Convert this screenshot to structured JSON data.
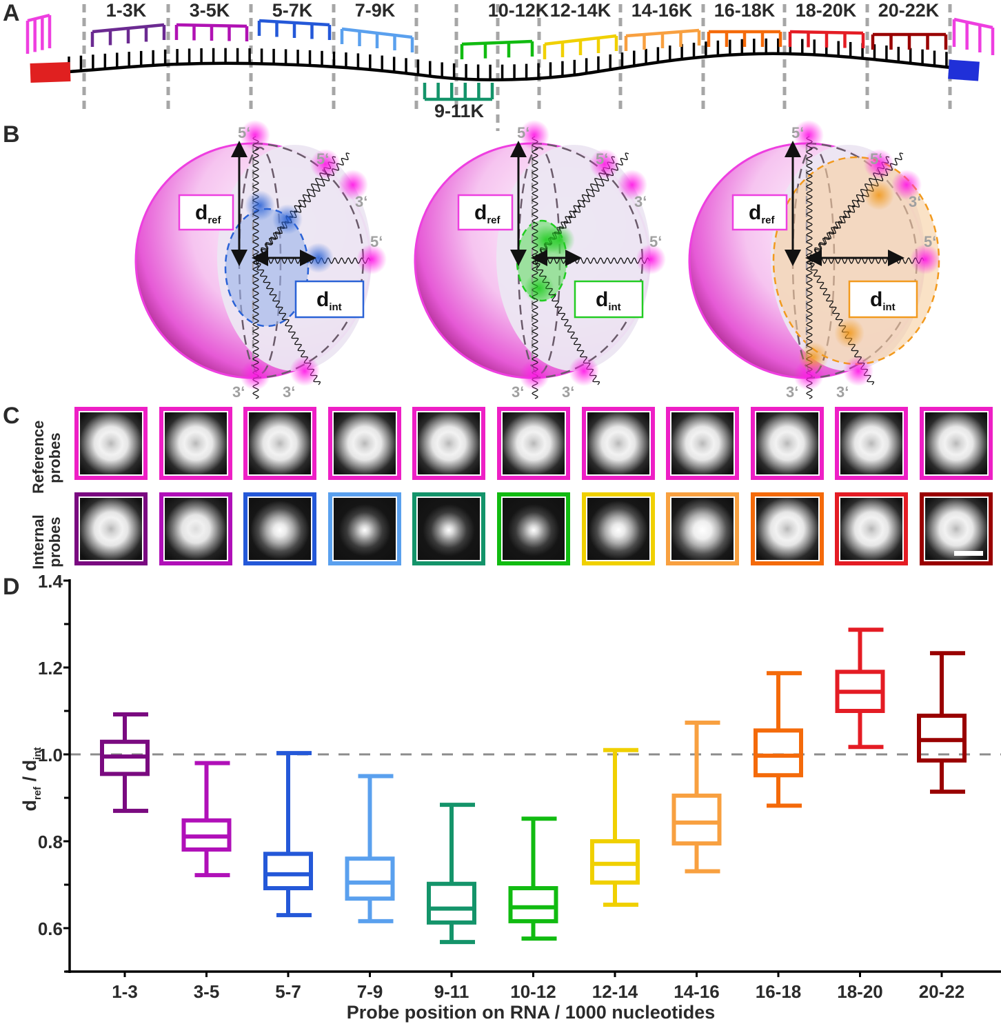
{
  "panels": {
    "a": {
      "letter": "A",
      "segments": [
        {
          "label": "1-3K",
          "color": "#6b2a91",
          "position": "above"
        },
        {
          "label": "3-5K",
          "color": "#b012b3",
          "position": "above"
        },
        {
          "label": "5-7K",
          "color": "#2458d8",
          "position": "above"
        },
        {
          "label": "7-9K",
          "color": "#5aa0ee",
          "position": "above"
        },
        {
          "label": "9-11K",
          "color": "#14946a",
          "position": "below"
        },
        {
          "label": "10-12K",
          "color": "#11bb11",
          "position": "above"
        },
        {
          "label": "12-14K",
          "color": "#f0d000",
          "position": "above"
        },
        {
          "label": "14-16K",
          "color": "#f8a040",
          "position": "above"
        },
        {
          "label": "16-18K",
          "color": "#f46a0a",
          "position": "above"
        },
        {
          "label": "18-20K",
          "color": "#e41c24",
          "position": "above"
        },
        {
          "label": "20-22K",
          "color": "#990000",
          "position": "above"
        }
      ],
      "reference_probe_color": "#ee3fe0",
      "end_5prime_color": "#e02020",
      "end_3prime_color": "#2030d8"
    },
    "b": {
      "letter": "B",
      "models": [
        {
          "internal_color": "#2a62d6",
          "fill": "#9ab2ea",
          "d_ref": "d",
          "d_ref_sub": "ref",
          "d_int": "d",
          "d_int_sub": "int",
          "box_color": "#2a62d6"
        },
        {
          "internal_color": "#22cc22",
          "fill": "#66dd66",
          "d_ref": "d",
          "d_ref_sub": "ref",
          "d_int": "d",
          "d_int_sub": "int",
          "box_color": "#22cc22"
        },
        {
          "internal_color": "#f29a1e",
          "fill": "#f7cfa0",
          "d_ref": "d",
          "d_ref_sub": "ref",
          "d_int": "d",
          "d_int_sub": "int",
          "box_color": "#f29a1e"
        }
      ],
      "end_labels": {
        "five_prime": "5‘",
        "three_prime": "3‘"
      },
      "sphere_color": "#ee3fe0"
    },
    "c": {
      "letter": "C",
      "reference_row_label": [
        "Reference",
        "probes"
      ],
      "internal_row_label": [
        "Internal",
        "probes"
      ],
      "reference_border": "#ee1fc5",
      "internal_borders": [
        "#7a0a80",
        "#b010b8",
        "#2458d8",
        "#5aa0ee",
        "#14946a",
        "#11bb11",
        "#f0d000",
        "#f8a040",
        "#f46a0a",
        "#e41c24",
        "#990000"
      ],
      "reference_profile": [
        "ring",
        "ring",
        "ring",
        "ring",
        "ring",
        "ring",
        "ring",
        "ring",
        "ring",
        "ring",
        "ring"
      ],
      "internal_profile": [
        "ring",
        "ring-small",
        "spot",
        "spot-small",
        "spot-small",
        "spot-small",
        "spot",
        "spot-large",
        "ring",
        "ring",
        "ring"
      ],
      "scale_bar": true
    },
    "d": {
      "letter": "D"
    }
  },
  "chart_data": {
    "type": "box",
    "title": "",
    "xlabel": "Probe position on RNA / 1000 nucleotides",
    "ylabel": "d_ref / d_int",
    "ylabel_parts": {
      "main1": "d",
      "sub1": "ref",
      "sep": " / ",
      "main2": "d",
      "sub2": "int"
    },
    "ylim": [
      0.5,
      1.4
    ],
    "yticks_major": [
      0.6,
      0.8,
      1.0,
      1.2,
      1.4
    ],
    "yticks_labels": [
      "0.6",
      "0.8",
      "1.0",
      "1.2",
      "1.4"
    ],
    "yticks_minor": [
      0.5,
      0.7,
      0.9,
      1.1,
      1.3
    ],
    "reference_line": 1.0,
    "grid": false,
    "categories": [
      "1-3",
      "3-5",
      "5-7",
      "7-9",
      "9-11",
      "10-12",
      "12-14",
      "14-16",
      "16-18",
      "18-20",
      "20-22"
    ],
    "colors": [
      "#7a0a80",
      "#b010b8",
      "#2458d8",
      "#5aa0ee",
      "#14946a",
      "#11bb11",
      "#f0d000",
      "#f8a040",
      "#f46a0a",
      "#e41c24",
      "#990000"
    ],
    "series": [
      {
        "name": "1-3",
        "min": 0.87,
        "q1": 0.955,
        "median": 0.995,
        "q3": 1.029,
        "max": 1.092
      },
      {
        "name": "3-5",
        "min": 0.722,
        "q1": 0.781,
        "median": 0.811,
        "q3": 0.848,
        "max": 0.98
      },
      {
        "name": "5-7",
        "min": 0.63,
        "q1": 0.692,
        "median": 0.724,
        "q3": 0.771,
        "max": 1.003
      },
      {
        "name": "7-9",
        "min": 0.616,
        "q1": 0.668,
        "median": 0.705,
        "q3": 0.76,
        "max": 0.95
      },
      {
        "name": "9-11",
        "min": 0.568,
        "q1": 0.613,
        "median": 0.645,
        "q3": 0.702,
        "max": 0.884
      },
      {
        "name": "10-12",
        "min": 0.576,
        "q1": 0.616,
        "median": 0.648,
        "q3": 0.692,
        "max": 0.852
      },
      {
        "name": "12-14",
        "min": 0.654,
        "q1": 0.705,
        "median": 0.748,
        "q3": 0.8,
        "max": 1.01
      },
      {
        "name": "14-16",
        "min": 0.731,
        "q1": 0.795,
        "median": 0.843,
        "q3": 0.905,
        "max": 1.073
      },
      {
        "name": "16-18",
        "min": 0.882,
        "q1": 0.952,
        "median": 0.997,
        "q3": 1.055,
        "max": 1.187
      },
      {
        "name": "18-20",
        "min": 1.017,
        "q1": 1.1,
        "median": 1.144,
        "q3": 1.19,
        "max": 1.287
      },
      {
        "name": "20-22",
        "min": 0.914,
        "q1": 0.986,
        "median": 1.033,
        "q3": 1.089,
        "max": 1.233
      }
    ]
  }
}
